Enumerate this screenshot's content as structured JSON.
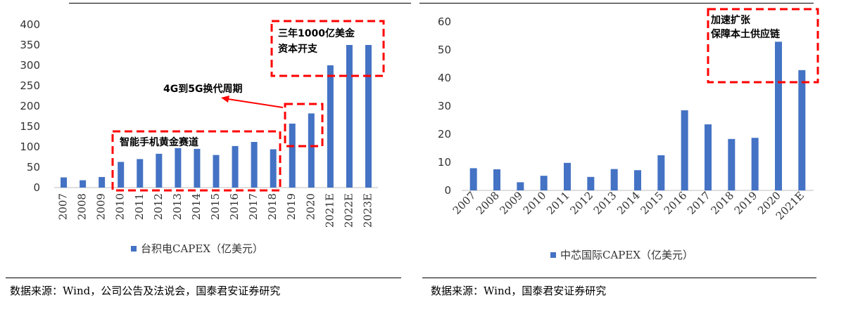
{
  "chart_data": [
    {
      "type": "bar",
      "categories": [
        "2007",
        "2008",
        "2009",
        "2010",
        "2011",
        "2012",
        "2013",
        "2014",
        "2015",
        "2016",
        "2017",
        "2018",
        "2019",
        "2020",
        "2021E",
        "2022E",
        "2023E"
      ],
      "series": [
        {
          "name": "台积电CAPEX（亿美元）",
          "values": [
            25,
            18,
            26,
            63,
            70,
            83,
            97,
            95,
            80,
            102,
            112,
            94,
            157,
            182,
            300,
            350,
            350
          ]
        }
      ],
      "ylim": [
        0,
        400
      ],
      "yticks": [
        0,
        50,
        100,
        150,
        200,
        250,
        300,
        350,
        400
      ],
      "legend": "bottom",
      "color": "#4472c4",
      "annotations": [
        {
          "text": "三年1000亿美金",
          "text2": "资本开支"
        },
        {
          "text": "4G到5G换代周期"
        },
        {
          "text": "智能手机黄金赛道"
        }
      ],
      "source": "数据来源：Wind，公司公告及法说会，国泰君安证券研究"
    },
    {
      "type": "bar",
      "categories": [
        "2007",
        "2008",
        "2009",
        "2010",
        "2011",
        "2012",
        "2013",
        "2014",
        "2015",
        "2016",
        "2017",
        "2018",
        "2019",
        "2020",
        "2021E"
      ],
      "series": [
        {
          "name": "中芯国际CAPEX（亿美元）",
          "values": [
            7.9,
            7.5,
            2.9,
            5.2,
            9.8,
            4.8,
            7.6,
            7.2,
            12.5,
            28.5,
            23.5,
            18.3,
            18.7,
            52.9,
            42.8
          ]
        }
      ],
      "ylim": [
        0,
        60
      ],
      "yticks": [
        0,
        10,
        20,
        30,
        40,
        50,
        60
      ],
      "legend": "bottom",
      "color": "#4472c4",
      "annotations": [
        {
          "text": "加速扩张",
          "text2": "保障本土供应链"
        }
      ],
      "source": "数据来源：Wind，国泰君安证券研究"
    }
  ]
}
